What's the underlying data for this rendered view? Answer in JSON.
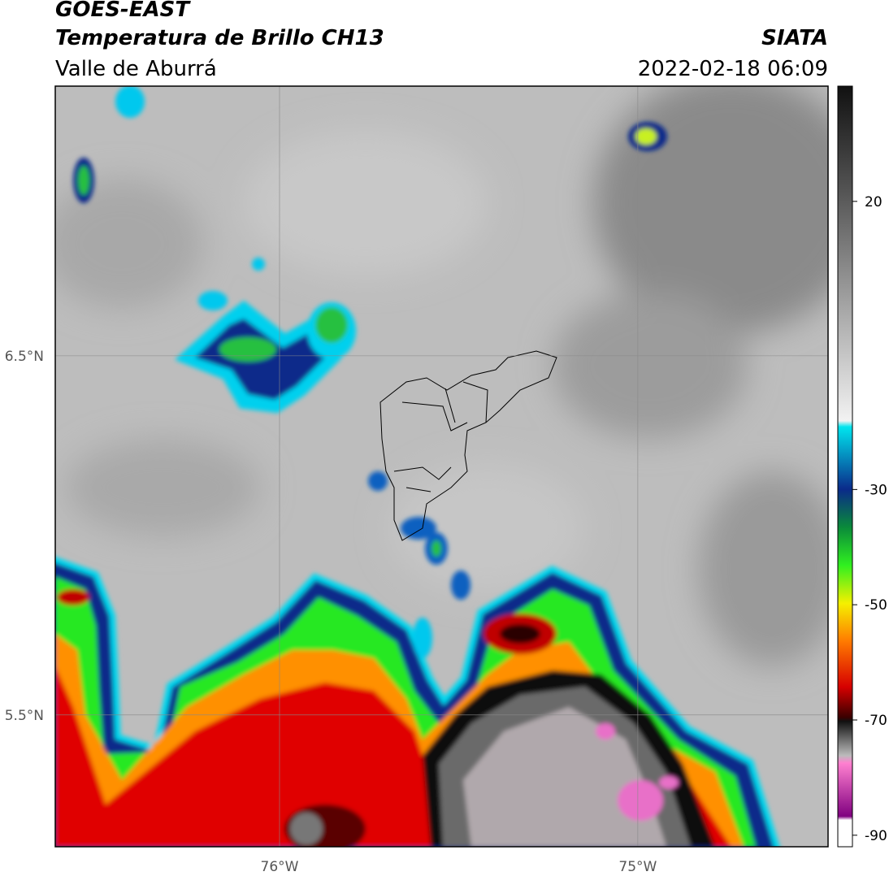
{
  "header": {
    "title": "GOES-EAST",
    "subtitle": "Temperatura de Brillo CH13",
    "region": "Valle de Aburrá",
    "source": "SIATA",
    "datetime": "2022-02-18 06:09"
  },
  "map": {
    "xlim": [
      -76.626,
      -74.469
    ],
    "ylim": [
      5.133,
      7.251
    ],
    "xticks": [
      {
        "value": -76,
        "label": "76°W"
      },
      {
        "value": -75,
        "label": "75°W"
      }
    ],
    "yticks": [
      {
        "value": 6.5,
        "label": "6.5°N"
      },
      {
        "value": 5.5,
        "label": "5.5°N"
      }
    ],
    "grid": true
  },
  "colorbar": {
    "lim": [
      -92,
      40
    ],
    "ticks": [
      20,
      -30,
      -50,
      -70,
      -90
    ]
  }
}
